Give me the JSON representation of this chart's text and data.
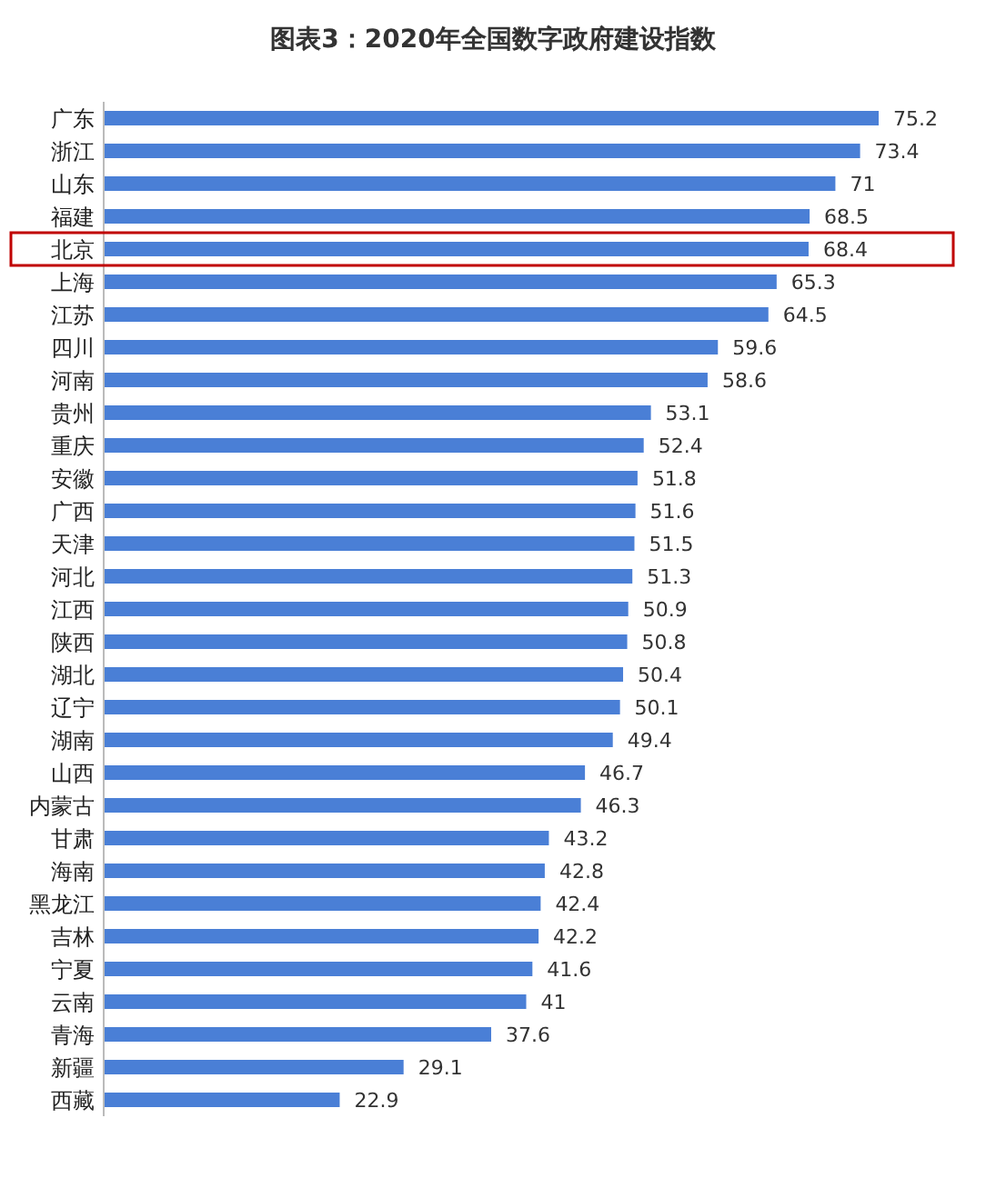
{
  "chart_data": {
    "type": "bar",
    "orientation": "horizontal",
    "title": "图表3：2020年全国数字政府建设指数",
    "categories": [
      "广东",
      "浙江",
      "山东",
      "福建",
      "北京",
      "上海",
      "江苏",
      "四川",
      "河南",
      "贵州",
      "重庆",
      "安徽",
      "广西",
      "天津",
      "河北",
      "江西",
      "陕西",
      "湖北",
      "辽宁",
      "湖南",
      "山西",
      "内蒙古",
      "甘肃",
      "海南",
      "黑龙江",
      "吉林",
      "宁夏",
      "云南",
      "青海",
      "新疆",
      "西藏"
    ],
    "values": [
      75.2,
      73.4,
      71,
      68.5,
      68.4,
      65.3,
      64.5,
      59.6,
      58.6,
      53.1,
      52.4,
      51.8,
      51.6,
      51.5,
      51.3,
      50.9,
      50.8,
      50.4,
      50.1,
      49.4,
      46.7,
      46.3,
      43.2,
      42.8,
      42.4,
      42.2,
      41.6,
      41,
      37.6,
      29.1,
      22.9
    ],
    "color": "#4a7fd6",
    "data_labels": true
  }
}
